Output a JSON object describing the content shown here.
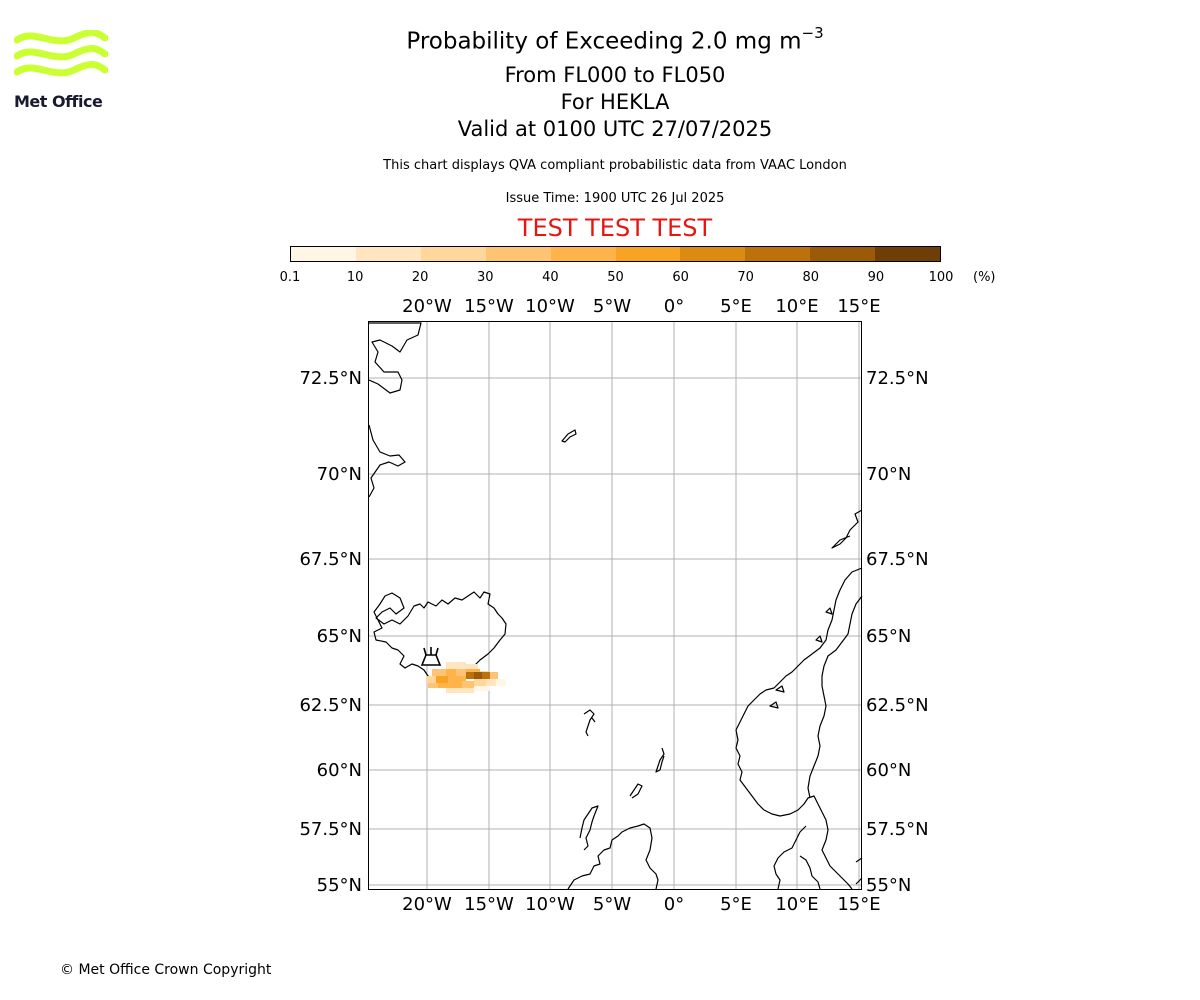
{
  "header": {
    "title_prefix": "Probability of Exceeding 2.0 mg m",
    "title_exponent": "−3",
    "flight_levels": "From FL000 to FL050",
    "volcano": "For HEKLA",
    "valid_time": "Valid at 0100 UTC 27/07/2025",
    "disclaimer": "This chart displays QVA compliant probabilistic data from VAAC London",
    "issue_time": "Issue Time: 1900 UTC 26 Jul 2025",
    "test_banner": "TEST TEST TEST"
  },
  "logo": {
    "text": "Met Office",
    "color": "#ccff33"
  },
  "colorbar": {
    "ticks": [
      "0.1",
      "10",
      "20",
      "30",
      "40",
      "50",
      "60",
      "70",
      "80",
      "90",
      "100"
    ],
    "unit": "(%)",
    "colors": [
      "#fff6e6",
      "#ffe5c0",
      "#ffd69c",
      "#ffc473",
      "#ffb449",
      "#f8a324",
      "#dc8b12",
      "#bc710c",
      "#9b5a08",
      "#6f3e06"
    ]
  },
  "map": {
    "lon_labels": [
      "20°W",
      "15°W",
      "10°W",
      "5°W",
      "0°",
      "5°E",
      "10°E",
      "15°E"
    ],
    "lat_labels": [
      "72.5°N",
      "70°N",
      "67.5°N",
      "65°N",
      "62.5°N",
      "60°N",
      "57.5°N",
      "55°N"
    ],
    "volcano_marker": "volcano-icon",
    "plume_color_range": [
      "#ffe5c0",
      "#9b5a08"
    ]
  },
  "footer": {
    "copyright": "© Met Office Crown Copyright"
  }
}
